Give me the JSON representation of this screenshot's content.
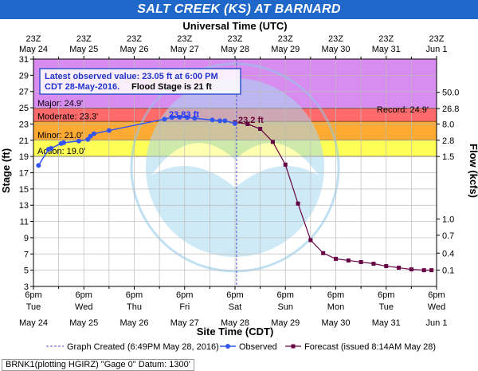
{
  "title": "SALT CREEK (KS) AT BARNARD",
  "top_axis_title": "Universal Time (UTC)",
  "top_ticks": [
    {
      "l1": "23Z",
      "l2": "May 24"
    },
    {
      "l1": "23Z",
      "l2": "May 25"
    },
    {
      "l1": "23Z",
      "l2": "May 26"
    },
    {
      "l1": "23Z",
      "l2": "May 27"
    },
    {
      "l1": "23Z",
      "l2": "May 28"
    },
    {
      "l1": "23Z",
      "l2": "May 29"
    },
    {
      "l1": "23Z",
      "l2": "May 30"
    },
    {
      "l1": "23Z",
      "l2": "May 31"
    },
    {
      "l1": "23Z",
      "l2": "Jun 1"
    }
  ],
  "bottom_axis_title": "Site Time (CDT)",
  "bottom_ticks": [
    {
      "l1": "6pm",
      "l2": "Tue",
      "l3": "May 24"
    },
    {
      "l1": "6pm",
      "l2": "Wed",
      "l3": "May 25"
    },
    {
      "l1": "6pm",
      "l2": "Thu",
      "l3": "May 26"
    },
    {
      "l1": "6pm",
      "l2": "Fri",
      "l3": "May 27"
    },
    {
      "l1": "6pm",
      "l2": "Sat",
      "l3": "May 28"
    },
    {
      "l1": "6pm",
      "l2": "Sun",
      "l3": "May 29"
    },
    {
      "l1": "6pm",
      "l2": "Mon",
      "l3": "May 30"
    },
    {
      "l1": "6pm",
      "l2": "Tue",
      "l3": "May 31"
    },
    {
      "l1": "6pm",
      "l2": "Wed",
      "l3": "Jun 1"
    }
  ],
  "left_axis_title": "Stage (ft)",
  "right_axis_title": "Flow (kcfs)",
  "info_box": {
    "line1": "Latest observed value: 23.05 ft at 6:00 PM",
    "line2_a": "CDT 28-May-2016.",
    "line2_b": "Flood Stage is 21 ft"
  },
  "flood_categories": {
    "major": {
      "label": "Major: 24.9'",
      "from": 24.9,
      "to": 31,
      "color": "#d98cf0"
    },
    "moderate": {
      "label": "Moderate: 23.3'",
      "from": 23.3,
      "to": 24.9,
      "color": "#ff6b6b"
    },
    "minor": {
      "label": "Minor: 21.0'",
      "from": 21.0,
      "to": 23.3,
      "color": "#ffaa33"
    },
    "action": {
      "label": "Action: 19.0'",
      "from": 19.0,
      "to": 21.0,
      "color": "#ffff55"
    }
  },
  "record_label": "Record: 24.9'",
  "annotations": {
    "crest_observed": "23.83 ft",
    "crest_forecast": "23.2 ft"
  },
  "legend": {
    "created": "Graph Created (6:49PM May 28, 2016)",
    "observed": "Observed",
    "forecast": "Forecast (issued 8:14AM May 28)"
  },
  "footer": "BRNK1(plotting HGIRZ) \"Gage 0\" Datum: 1300'",
  "chart_data": {
    "type": "line",
    "x_unit": "days after 6pm Tue May 24 (CDT)",
    "xlim": [
      0,
      8
    ],
    "ylim": [
      3,
      31
    ],
    "y_ticks": [
      3,
      5,
      7,
      9,
      11,
      13,
      15,
      17,
      19,
      21,
      23,
      25,
      27,
      29,
      31
    ],
    "right_ticks": [
      {
        "stage": 5.0,
        "label": "0.1"
      },
      {
        "stage": 7.1,
        "label": "0.4"
      },
      {
        "stage": 9.3,
        "label": "0.7"
      },
      {
        "stage": 11.3,
        "label": "1.0"
      },
      {
        "stage": 19.0,
        "label": "1.5"
      },
      {
        "stage": 21.0,
        "label": "2.8"
      },
      {
        "stage": 23.0,
        "label": "8.0"
      },
      {
        "stage": 24.9,
        "label": "26.8"
      },
      {
        "stage": 26.9,
        "label": "50.0"
      }
    ],
    "graph_created_x": 4.03,
    "observed": [
      {
        "x": 0.1,
        "y": 17.9
      },
      {
        "x": 0.3,
        "y": 19.9
      },
      {
        "x": 0.35,
        "y": 20.0
      },
      {
        "x": 0.55,
        "y": 20.6
      },
      {
        "x": 0.6,
        "y": 20.7
      },
      {
        "x": 0.9,
        "y": 20.9
      },
      {
        "x": 1.08,
        "y": 21.1
      },
      {
        "x": 1.13,
        "y": 21.5
      },
      {
        "x": 1.2,
        "y": 21.8
      },
      {
        "x": 1.5,
        "y": 22.2
      },
      {
        "x": 2.6,
        "y": 23.6
      },
      {
        "x": 2.75,
        "y": 23.8
      },
      {
        "x": 2.9,
        "y": 23.83
      },
      {
        "x": 3.05,
        "y": 23.8
      },
      {
        "x": 3.2,
        "y": 23.7
      },
      {
        "x": 3.55,
        "y": 23.5
      },
      {
        "x": 3.7,
        "y": 23.4
      },
      {
        "x": 3.8,
        "y": 23.4
      },
      {
        "x": 4.0,
        "y": 23.05
      }
    ],
    "forecast": [
      {
        "x": 4.0,
        "y": 23.2
      },
      {
        "x": 4.25,
        "y": 23.0
      },
      {
        "x": 4.5,
        "y": 22.4
      },
      {
        "x": 4.75,
        "y": 20.8
      },
      {
        "x": 5.0,
        "y": 18.0
      },
      {
        "x": 5.25,
        "y": 13.2
      },
      {
        "x": 5.5,
        "y": 8.7
      },
      {
        "x": 5.75,
        "y": 7.1
      },
      {
        "x": 6.0,
        "y": 6.4
      },
      {
        "x": 6.25,
        "y": 6.2
      },
      {
        "x": 6.5,
        "y": 6.0
      },
      {
        "x": 6.75,
        "y": 5.8
      },
      {
        "x": 7.0,
        "y": 5.5
      },
      {
        "x": 7.25,
        "y": 5.3
      },
      {
        "x": 7.5,
        "y": 5.1
      },
      {
        "x": 7.75,
        "y": 5.0
      },
      {
        "x": 7.9,
        "y": 5.0
      }
    ]
  }
}
